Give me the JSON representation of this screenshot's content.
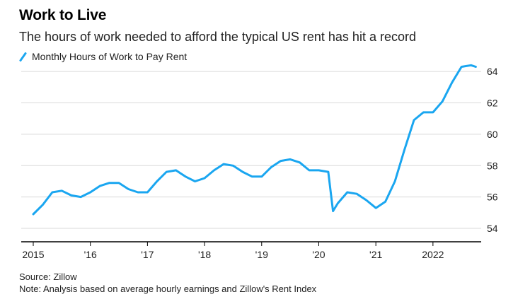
{
  "chart_data": {
    "type": "line",
    "title": "Work to Live",
    "subtitle": "The hours of work needed to afford the typical US rent has hit a record",
    "series": [
      {
        "name": "Monthly Hours of Work to Pay Rent",
        "color": "#1aa6f0",
        "x": [
          "2015-01",
          "2015-03",
          "2015-05",
          "2015-07",
          "2015-09",
          "2015-11",
          "2016-01",
          "2016-03",
          "2016-05",
          "2016-07",
          "2016-09",
          "2016-11",
          "2017-01",
          "2017-03",
          "2017-05",
          "2017-07",
          "2017-09",
          "2017-11",
          "2018-01",
          "2018-03",
          "2018-05",
          "2018-07",
          "2018-09",
          "2018-11",
          "2019-01",
          "2019-03",
          "2019-05",
          "2019-07",
          "2019-09",
          "2019-11",
          "2020-01",
          "2020-03",
          "2020-04",
          "2020-05",
          "2020-07",
          "2020-09",
          "2020-11",
          "2021-01",
          "2021-03",
          "2021-05",
          "2021-07",
          "2021-09",
          "2021-11",
          "2022-01",
          "2022-03",
          "2022-05",
          "2022-07",
          "2022-09",
          "2022-10"
        ],
        "values": [
          54.9,
          55.5,
          56.3,
          56.4,
          56.1,
          56.0,
          56.3,
          56.7,
          56.9,
          56.9,
          56.5,
          56.3,
          56.3,
          57.0,
          57.6,
          57.7,
          57.3,
          57.0,
          57.2,
          57.7,
          58.1,
          58.0,
          57.6,
          57.3,
          57.3,
          57.9,
          58.3,
          58.4,
          58.2,
          57.7,
          57.7,
          57.6,
          55.1,
          55.6,
          56.3,
          56.2,
          55.8,
          55.3,
          55.7,
          57.0,
          59.0,
          60.9,
          61.4,
          61.4,
          62.1,
          63.3,
          64.3,
          64.4,
          64.3
        ]
      }
    ],
    "x_ticks": [
      "2015",
      "'16",
      "'17",
      "'18",
      "'19",
      "'20",
      "'21",
      "2022"
    ],
    "y_ticks": [
      "54",
      "56",
      "58",
      "60",
      "62",
      "64"
    ],
    "ylim": [
      54,
      65
    ],
    "xlim": [
      "2015-01",
      "2023-03"
    ],
    "grid": true,
    "legend_position": "top-left",
    "source": "Source: Zillow",
    "note": "Note: Analysis based on average hourly earnings and Zillow's Rent Index"
  }
}
